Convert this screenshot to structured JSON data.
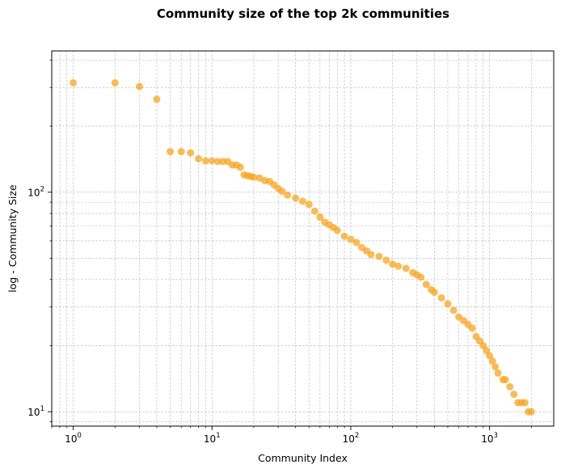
{
  "chart_data": {
    "type": "scatter",
    "title": "Community size of the top 2k communities",
    "xlabel": "Community Index",
    "ylabel": "log - Community Size",
    "xscale": "log",
    "yscale": "log",
    "xlim": [
      0.7,
      2900
    ],
    "ylim": [
      8.6,
      440
    ],
    "grid": true,
    "marker_color": "#f5a623",
    "x_ticks": [
      {
        "value": 1,
        "base": "10",
        "exp": "0"
      },
      {
        "value": 10,
        "base": "10",
        "exp": "1"
      },
      {
        "value": 100,
        "base": "10",
        "exp": "2"
      },
      {
        "value": 1000,
        "base": "10",
        "exp": "3"
      }
    ],
    "y_ticks": [
      {
        "value": 10,
        "base": "10",
        "exp": "1"
      },
      {
        "value": 100,
        "base": "10",
        "exp": "2"
      }
    ],
    "points": [
      [
        1,
        315
      ],
      [
        2,
        315
      ],
      [
        3,
        303
      ],
      [
        4,
        265
      ],
      [
        5,
        153
      ],
      [
        6,
        153
      ],
      [
        7,
        151
      ],
      [
        8,
        142
      ],
      [
        9,
        139
      ],
      [
        10,
        139
      ],
      [
        11,
        138
      ],
      [
        12,
        138
      ],
      [
        13,
        138
      ],
      [
        14,
        133
      ],
      [
        15,
        133
      ],
      [
        16,
        130
      ],
      [
        17,
        120
      ],
      [
        18,
        119
      ],
      [
        19,
        118
      ],
      [
        20,
        117
      ],
      [
        22,
        116
      ],
      [
        24,
        113
      ],
      [
        26,
        112
      ],
      [
        28,
        108
      ],
      [
        30,
        104
      ],
      [
        32,
        101
      ],
      [
        35,
        97
      ],
      [
        40,
        94
      ],
      [
        45,
        91
      ],
      [
        50,
        88
      ],
      [
        55,
        82
      ],
      [
        60,
        77
      ],
      [
        65,
        73
      ],
      [
        70,
        71
      ],
      [
        75,
        69
      ],
      [
        80,
        67
      ],
      [
        90,
        63
      ],
      [
        100,
        61
      ],
      [
        110,
        59
      ],
      [
        120,
        56
      ],
      [
        130,
        54
      ],
      [
        140,
        52
      ],
      [
        160,
        51
      ],
      [
        180,
        49
      ],
      [
        200,
        47
      ],
      [
        220,
        46
      ],
      [
        250,
        45
      ],
      [
        280,
        43
      ],
      [
        300,
        42
      ],
      [
        320,
        41
      ],
      [
        350,
        38
      ],
      [
        380,
        36
      ],
      [
        400,
        35
      ],
      [
        450,
        33
      ],
      [
        500,
        31
      ],
      [
        550,
        29
      ],
      [
        600,
        27
      ],
      [
        650,
        26
      ],
      [
        700,
        25
      ],
      [
        750,
        24
      ],
      [
        800,
        22
      ],
      [
        850,
        21
      ],
      [
        900,
        20
      ],
      [
        950,
        19
      ],
      [
        1000,
        18
      ],
      [
        1050,
        17
      ],
      [
        1100,
        16
      ],
      [
        1150,
        15
      ],
      [
        1250,
        14
      ],
      [
        1300,
        14
      ],
      [
        1400,
        13
      ],
      [
        1500,
        12
      ],
      [
        1600,
        11
      ],
      [
        1700,
        11
      ],
      [
        1800,
        11
      ],
      [
        1900,
        10
      ],
      [
        2000,
        10
      ]
    ]
  }
}
